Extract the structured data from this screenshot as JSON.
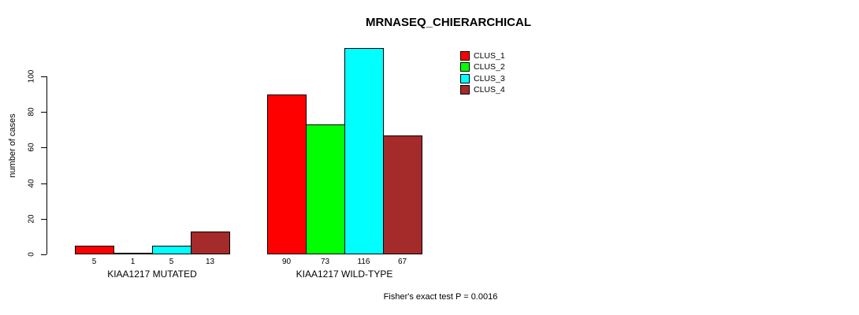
{
  "title": "MRNASEQ_CHIERARCHICAL",
  "footnote": "Fisher's exact test P = 0.0016",
  "chart_data": {
    "type": "bar",
    "title": "MRNASEQ_CHIERARCHICAL",
    "xlabel": "",
    "ylabel": "number of cases",
    "ylim": [
      0,
      116
    ],
    "yticks": [
      0,
      20,
      40,
      60,
      80,
      100
    ],
    "grid": false,
    "legend_position": "top-right",
    "categories": [
      "KIAA1217 MUTATED",
      "KIAA1217 WILD-TYPE"
    ],
    "series": [
      {
        "name": "CLUS_1",
        "color": "#FF0000",
        "values": [
          5,
          90
        ]
      },
      {
        "name": "CLUS_2",
        "color": "#00FF00",
        "values": [
          1,
          73
        ]
      },
      {
        "name": "CLUS_3",
        "color": "#00FFFF",
        "values": [
          5,
          116
        ]
      },
      {
        "name": "CLUS_4",
        "color": "#A52A2A",
        "values": [
          13,
          67
        ]
      }
    ],
    "bar_value_labels": [
      [
        5,
        1,
        5,
        13
      ],
      [
        90,
        73,
        116,
        67
      ]
    ],
    "bar_border_color": "#000000",
    "annotation": "Fisher's exact test P = 0.0016"
  },
  "legend": {
    "items": [
      {
        "label": "CLUS_1",
        "color": "#FF0000"
      },
      {
        "label": "CLUS_2",
        "color": "#00FF00"
      },
      {
        "label": "CLUS_3",
        "color": "#00FFFF"
      },
      {
        "label": "CLUS_4",
        "color": "#A52A2A"
      }
    ]
  }
}
